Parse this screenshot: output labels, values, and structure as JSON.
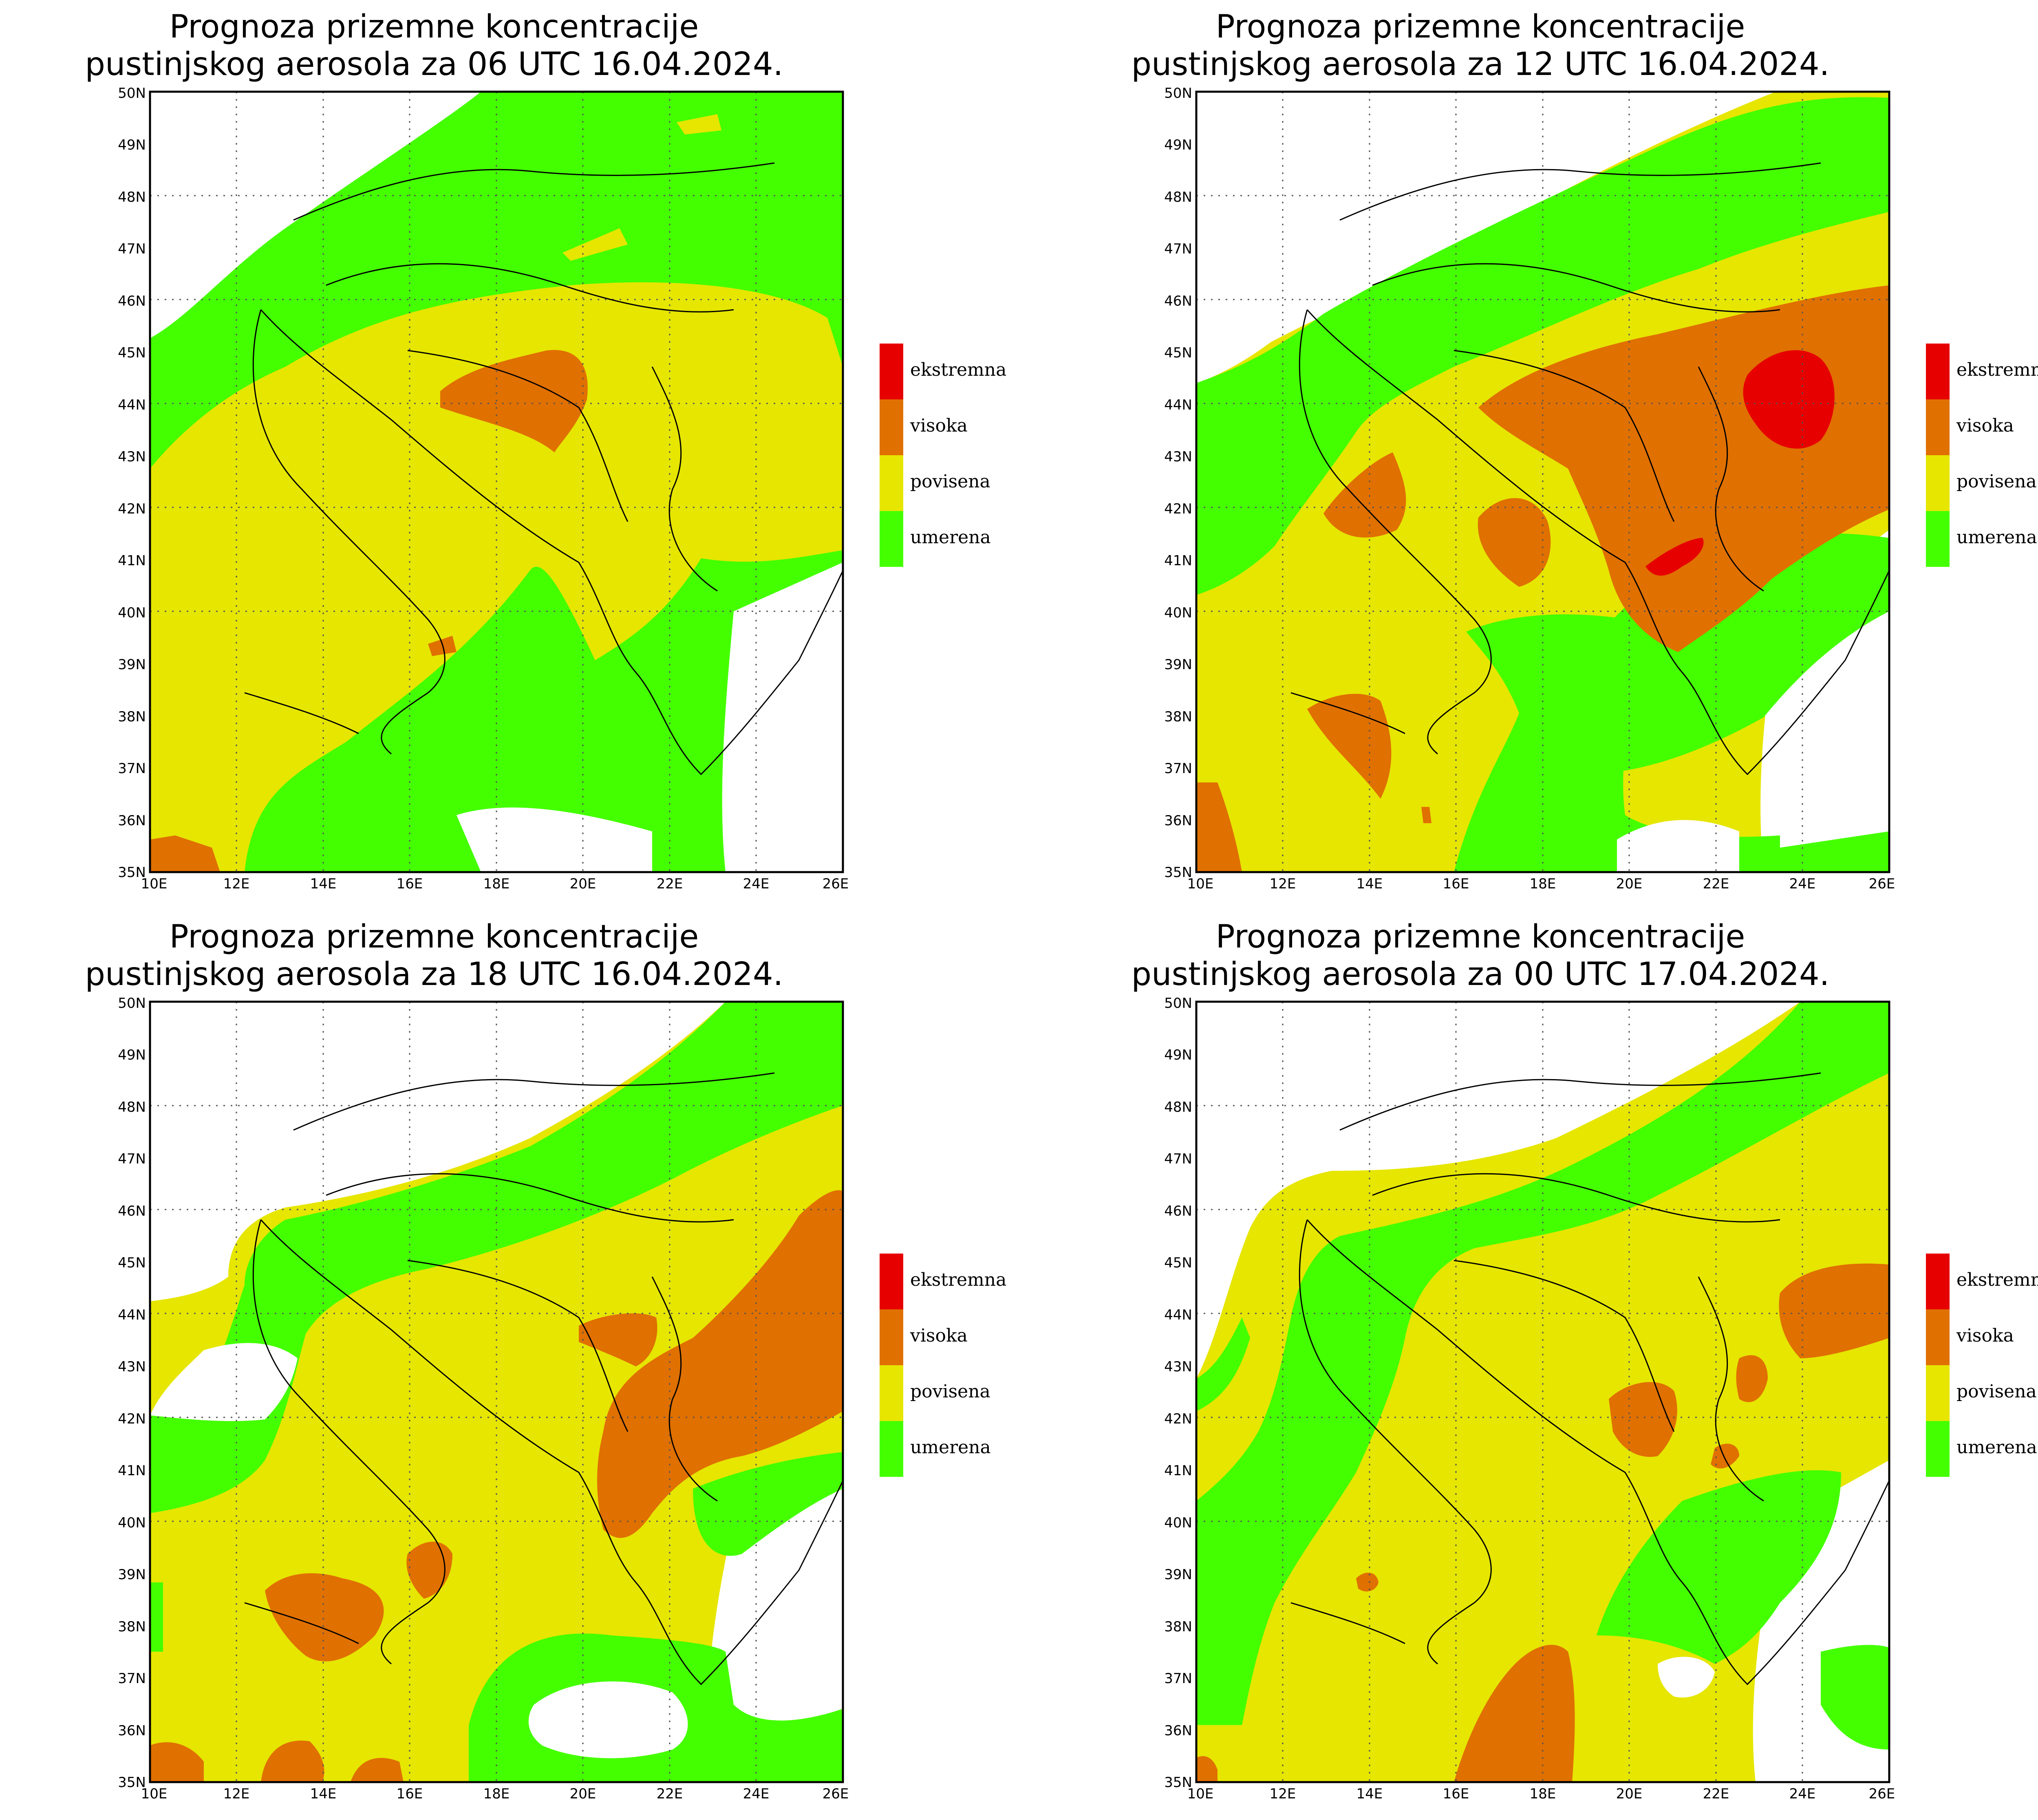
{
  "colors": {
    "ekstremna": "#e60000",
    "visoka": "#e07000",
    "povisena": "#e6e600",
    "umerena": "#44ff00",
    "background": "#ffffff"
  },
  "legend": [
    "ekstremna",
    "visoka",
    "povisena",
    "umerena"
  ],
  "axes": {
    "lat_labels": [
      "35N",
      "36N",
      "37N",
      "38N",
      "39N",
      "40N",
      "41N",
      "42N",
      "43N",
      "44N",
      "45N",
      "46N",
      "47N",
      "48N",
      "49N",
      "50N"
    ],
    "lon_labels": [
      "10E",
      "12E",
      "14E",
      "16E",
      "18E",
      "20E",
      "22E",
      "24E",
      "26E"
    ]
  },
  "panels": [
    {
      "title_line1": "Prognoza prizemne koncentracije",
      "title_line2": "pustinjskog aerosola za 06 UTC 16.04.2024."
    },
    {
      "title_line1": "Prognoza prizemne koncentracije",
      "title_line2": "pustinjskog aerosola za 12 UTC 16.04.2024."
    },
    {
      "title_line1": "Prognoza prizemne koncentracije",
      "title_line2": "pustinjskog aerosola za 18 UTC 16.04.2024."
    },
    {
      "title_line1": "Prognoza prizemne koncentracije",
      "title_line2": "pustinjskog aerosola za 00 UTC 17.04.2024."
    }
  ]
}
